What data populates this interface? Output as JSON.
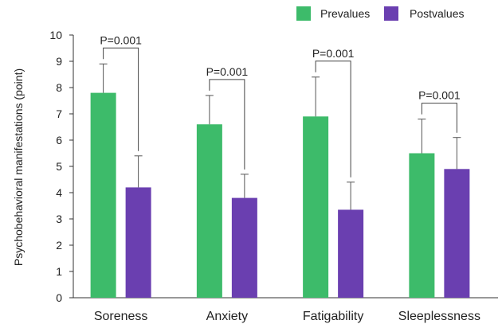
{
  "chart_data": {
    "type": "bar",
    "categories": [
      "Soreness",
      "Anxiety",
      "Fatigability",
      "Sleeplessness"
    ],
    "series": [
      {
        "name": "Prevalues",
        "color": "#3dbb6a",
        "values": [
          7.8,
          6.6,
          6.9,
          5.5
        ],
        "errors": [
          1.1,
          1.1,
          1.5,
          1.3
        ]
      },
      {
        "name": "Postvalues",
        "color": "#6a3fb0",
        "values": [
          4.2,
          3.8,
          3.35,
          4.9
        ],
        "errors": [
          1.2,
          0.9,
          1.05,
          1.2
        ]
      }
    ],
    "annotations": [
      "P=0.001",
      "P=0.001",
      "P=0.001",
      "P=0.001"
    ],
    "ylabel": "Psychobehavioral manifestations (point)",
    "xlabel": "",
    "ylim": [
      0,
      10
    ],
    "yticks": [
      "0",
      "1",
      "2",
      "3",
      "4",
      "5",
      "6",
      "7",
      "8",
      "9",
      "10"
    ],
    "grid": false,
    "legend_position": "top-right"
  }
}
